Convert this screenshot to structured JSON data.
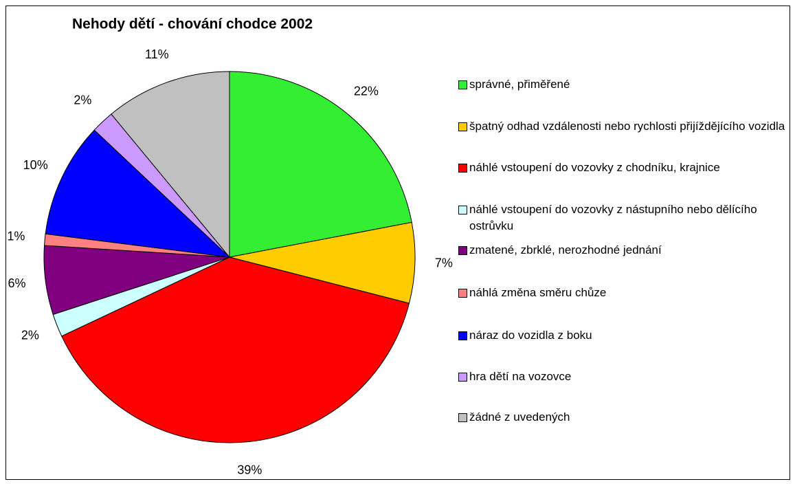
{
  "chart_data": {
    "type": "pie",
    "title": "Nehody dětí - chování chodce 2002",
    "categories": [
      "správné, přiměřené",
      "špatný odhad vzdálenosti nebo rychlosti přijíždějícího vozidla",
      "náhlé vstoupení do vozovky z chodníku, krajnice",
      "náhlé vstoupení do vozovky z nástupního nebo dělícího ostrůvku",
      "zmatené, zbrklé, nerozhodné jednání",
      "náhlá změna směru chůze",
      "náraz do vozidla z boku",
      "hra dětí na vozovce",
      "žádné z uvedených"
    ],
    "values": [
      22,
      7,
      39,
      2,
      6,
      1,
      10,
      2,
      11
    ],
    "value_labels": [
      "22%",
      "7%",
      "39%",
      "2%",
      "6%",
      "1%",
      "10%",
      "2%",
      "11%"
    ],
    "colors": [
      "#33ee33",
      "#ffcc00",
      "#ff0000",
      "#ccffff",
      "#800080",
      "#ff8080",
      "#0000ff",
      "#cc99ff",
      "#c0c0c0"
    ],
    "legend": "right"
  }
}
